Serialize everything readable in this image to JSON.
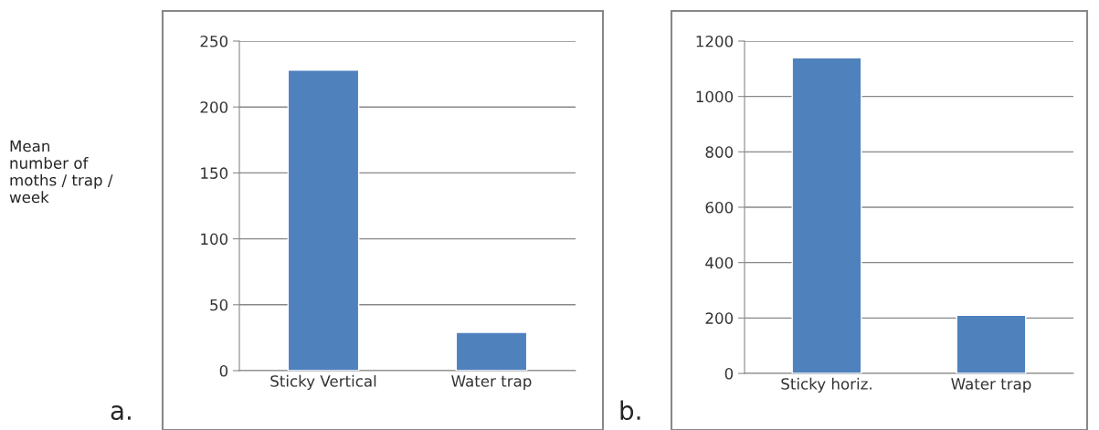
{
  "chart_data": [
    {
      "type": "bar",
      "categories": [
        "Sticky Vertical",
        "Water trap"
      ],
      "values": [
        228,
        29
      ],
      "color": "#4f81bd",
      "ylim": [
        0,
        250
      ],
      "yticks": [
        0,
        50,
        100,
        150,
        200,
        250
      ],
      "grid": "y",
      "ylabel": "Mean\nnumber of\nmoths / trap /\nweek",
      "annotations": [
        "a."
      ]
    },
    {
      "type": "bar",
      "categories": [
        "Sticky horiz.",
        "Water trap"
      ],
      "values": [
        1140,
        210
      ],
      "color": "#4f81bd",
      "ylim": [
        0,
        1200
      ],
      "yticks": [
        0,
        200,
        400,
        600,
        800,
        1000,
        1200
      ],
      "grid": "y",
      "annotations": [
        "b."
      ]
    }
  ]
}
